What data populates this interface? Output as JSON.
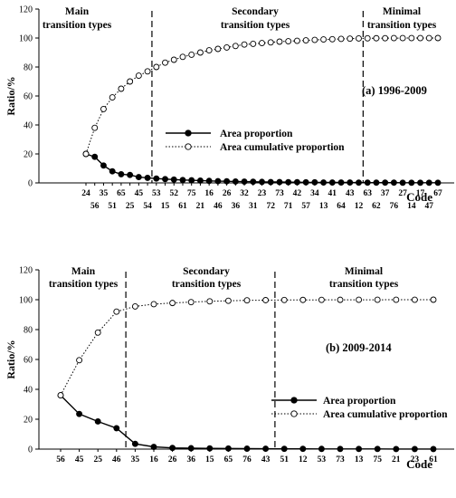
{
  "chart_data": [
    {
      "type": "line",
      "title": "(a) 1996-2009",
      "ylabel": "Ratio/%",
      "xlabel": "Code",
      "ylim": [
        0,
        120
      ],
      "yticks": [
        "0",
        "20",
        "40",
        "60",
        "80",
        "100",
        "120"
      ],
      "categories": [
        "24",
        "56",
        "35",
        "51",
        "65",
        "25",
        "45",
        "54",
        "53",
        "15",
        "52",
        "61",
        "75",
        "21",
        "16",
        "46",
        "26",
        "36",
        "32",
        "31",
        "23",
        "72",
        "73",
        "71",
        "42",
        "57",
        "34",
        "13",
        "41",
        "64",
        "43",
        "12",
        "63",
        "62",
        "37",
        "76",
        "27",
        "14",
        "17",
        "47",
        "67"
      ],
      "legend_position": "center-left",
      "region_labels": [
        [
          "Main",
          "transition types"
        ],
        [
          "Secondary",
          "transition types"
        ],
        [
          "Minimal",
          "transition types"
        ]
      ],
      "dividers_after_index": [
        7,
        31
      ],
      "series": [
        {
          "name": "Area proportion",
          "marker": "filled-circle",
          "line": "solid",
          "values": [
            20,
            18,
            12,
            8,
            6,
            5.5,
            4,
            3.5,
            3,
            2.6,
            2.3,
            2,
            1.8,
            1.6,
            1.4,
            1.2,
            1.1,
            1,
            0.9,
            0.8,
            0.7,
            0.6,
            0.6,
            0.5,
            0.5,
            0.4,
            0.4,
            0.3,
            0.3,
            0.3,
            0.3,
            0.2,
            0.2,
            0.2,
            0.2,
            0.2,
            0.1,
            0.1,
            0.1,
            0.1,
            0.1
          ]
        },
        {
          "name": "Area  cumulative proportion",
          "marker": "open-circle",
          "line": "dotted",
          "values": [
            20,
            38,
            51,
            59,
            65,
            70,
            74,
            77,
            80,
            83,
            85,
            87,
            88.5,
            90,
            91.5,
            92.5,
            93.5,
            94.5,
            95.5,
            96,
            96.5,
            97,
            97.5,
            97.8,
            98.1,
            98.4,
            98.7,
            99,
            99.2,
            99.4,
            99.6,
            99.7,
            99.8,
            99.85,
            99.9,
            99.93,
            99.95,
            99.97,
            99.98,
            99.99,
            100
          ]
        }
      ]
    },
    {
      "type": "line",
      "title": "(b) 2009-2014",
      "ylabel": "Ratio/%",
      "xlabel": "Code",
      "ylim": [
        0,
        120
      ],
      "yticks": [
        "0",
        "20",
        "40",
        "60",
        "80",
        "100",
        "120"
      ],
      "categories": [
        "56",
        "45",
        "25",
        "46",
        "35",
        "16",
        "26",
        "36",
        "15",
        "65",
        "76",
        "43",
        "51",
        "12",
        "53",
        "73",
        "13",
        "75",
        "21",
        "23",
        "61"
      ],
      "legend_position": "lower-right",
      "region_labels": [
        [
          "Main",
          "transition types"
        ],
        [
          "Secondary",
          "transition types"
        ],
        [
          "Minimal",
          "transition types"
        ]
      ],
      "dividers_after_index": [
        3,
        11
      ],
      "series": [
        {
          "name": "Area proportion",
          "marker": "filled-circle",
          "line": "solid",
          "values": [
            36,
            23.5,
            18.5,
            14,
            3.5,
            1.5,
            0.8,
            0.6,
            0.5,
            0.4,
            0.3,
            0.25,
            0.2,
            0.2,
            0.15,
            0.1,
            0.1,
            0.1,
            0.05,
            0.05,
            0.05
          ]
        },
        {
          "name": "Area  cumulative proportion",
          "marker": "open-circle",
          "line": "dotted",
          "values": [
            36,
            59.5,
            78,
            92,
            95.5,
            97,
            97.8,
            98.4,
            98.9,
            99.3,
            99.6,
            99.7,
            99.8,
            99.85,
            99.9,
            99.92,
            99.94,
            99.96,
            99.98,
            99.99,
            100
          ]
        }
      ]
    }
  ]
}
